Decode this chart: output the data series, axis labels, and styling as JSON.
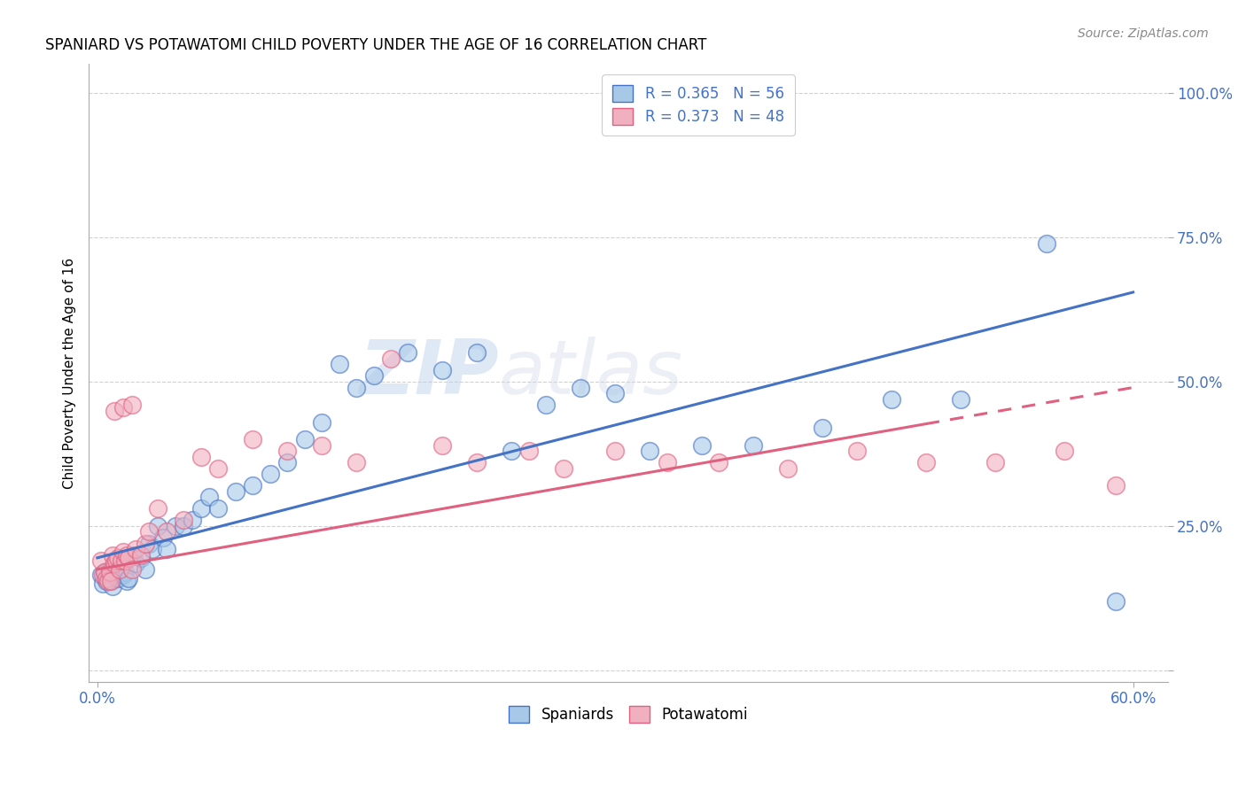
{
  "title": "SPANIARD VS POTAWATOMI CHILD POVERTY UNDER THE AGE OF 16 CORRELATION CHART",
  "source": "Source: ZipAtlas.com",
  "ylabel": "Child Poverty Under the Age of 16",
  "xlim": [
    -0.005,
    0.62
  ],
  "ylim": [
    -0.02,
    1.05
  ],
  "xticks": [
    0.0,
    0.6
  ],
  "xticklabels": [
    "0.0%",
    "60.0%"
  ],
  "yticks": [
    0.0,
    0.25,
    0.5,
    0.75,
    1.0
  ],
  "yticklabels": [
    "",
    "25.0%",
    "50.0%",
    "75.0%",
    "100.0%"
  ],
  "r_spaniards": 0.365,
  "n_spaniards": 56,
  "r_potawatomi": 0.373,
  "n_potawatomi": 48,
  "color_spaniards": "#A8C8E8",
  "color_potawatomi": "#F0B0C0",
  "color_line_spaniards": "#4472C4",
  "color_line_potawatomi": "#E06080",
  "watermark_zip": "ZIP",
  "watermark_atlas": "atlas",
  "spaniards_x": [
    0.002,
    0.003,
    0.004,
    0.005,
    0.006,
    0.007,
    0.008,
    0.009,
    0.01,
    0.011,
    0.012,
    0.013,
    0.014,
    0.015,
    0.016,
    0.017,
    0.018,
    0.02,
    0.022,
    0.025,
    0.028,
    0.03,
    0.032,
    0.035,
    0.038,
    0.04,
    0.045,
    0.05,
    0.055,
    0.06,
    0.065,
    0.07,
    0.08,
    0.09,
    0.1,
    0.11,
    0.12,
    0.13,
    0.14,
    0.15,
    0.16,
    0.18,
    0.2,
    0.22,
    0.24,
    0.26,
    0.28,
    0.3,
    0.32,
    0.35,
    0.38,
    0.42,
    0.46,
    0.5,
    0.55,
    0.59
  ],
  "spaniards_y": [
    0.165,
    0.15,
    0.17,
    0.155,
    0.16,
    0.175,
    0.155,
    0.145,
    0.165,
    0.18,
    0.16,
    0.175,
    0.18,
    0.165,
    0.17,
    0.155,
    0.16,
    0.2,
    0.185,
    0.195,
    0.175,
    0.22,
    0.21,
    0.25,
    0.23,
    0.21,
    0.25,
    0.25,
    0.26,
    0.28,
    0.3,
    0.28,
    0.31,
    0.32,
    0.34,
    0.36,
    0.4,
    0.43,
    0.53,
    0.49,
    0.51,
    0.55,
    0.52,
    0.55,
    0.38,
    0.46,
    0.49,
    0.48,
    0.38,
    0.39,
    0.39,
    0.42,
    0.47,
    0.47,
    0.74,
    0.12
  ],
  "potawatomi_x": [
    0.002,
    0.003,
    0.004,
    0.005,
    0.006,
    0.007,
    0.008,
    0.009,
    0.01,
    0.011,
    0.012,
    0.013,
    0.014,
    0.015,
    0.016,
    0.017,
    0.018,
    0.02,
    0.022,
    0.025,
    0.028,
    0.03,
    0.035,
    0.04,
    0.05,
    0.06,
    0.07,
    0.09,
    0.11,
    0.13,
    0.15,
    0.17,
    0.2,
    0.22,
    0.25,
    0.27,
    0.3,
    0.33,
    0.36,
    0.4,
    0.44,
    0.48,
    0.52,
    0.56,
    0.59,
    0.01,
    0.015,
    0.02
  ],
  "potawatomi_y": [
    0.19,
    0.165,
    0.17,
    0.16,
    0.155,
    0.17,
    0.155,
    0.2,
    0.185,
    0.19,
    0.195,
    0.175,
    0.19,
    0.205,
    0.19,
    0.2,
    0.195,
    0.175,
    0.21,
    0.2,
    0.22,
    0.24,
    0.28,
    0.24,
    0.26,
    0.37,
    0.35,
    0.4,
    0.38,
    0.39,
    0.36,
    0.54,
    0.39,
    0.36,
    0.38,
    0.35,
    0.38,
    0.36,
    0.36,
    0.35,
    0.38,
    0.36,
    0.36,
    0.38,
    0.32,
    0.45,
    0.455,
    0.46
  ],
  "line_spaniards_x0": 0.0,
  "line_spaniards_x1": 0.6,
  "line_spaniards_y0": 0.195,
  "line_spaniards_y1": 0.655,
  "line_potawatomi_x0": 0.0,
  "line_potawatomi_x1": 0.6,
  "line_potawatomi_y0": 0.175,
  "line_potawatomi_y1": 0.49,
  "line_potawatomi_solid_end": 0.48,
  "background_color": "#FFFFFF",
  "grid_color": "#CCCCCC",
  "tick_color": "#4472C4"
}
